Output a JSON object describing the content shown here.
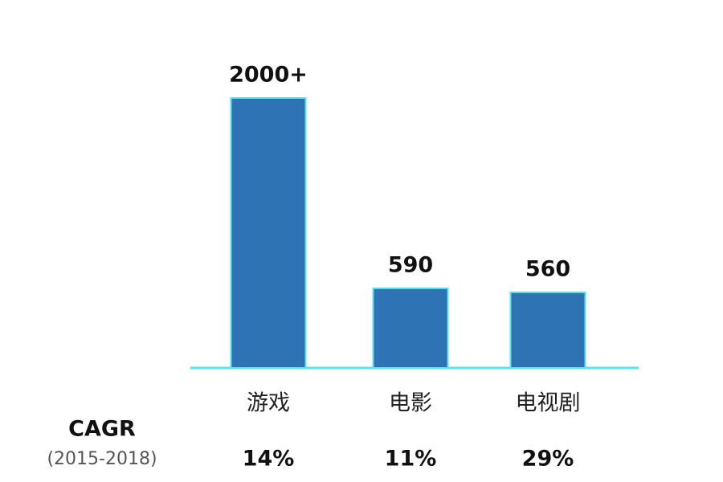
{
  "chart_data": {
    "type": "bar",
    "categories": [
      "游戏",
      "电影",
      "电视剧"
    ],
    "values": [
      2000,
      590,
      560
    ],
    "value_labels": [
      "2000+",
      "590",
      "560"
    ],
    "color": "#2e74b5",
    "cagr": {
      "label": "CAGR",
      "period": "(2015-2018)",
      "values": [
        14,
        11,
        29
      ],
      "value_labels": [
        "14%",
        "11%",
        "29%"
      ]
    }
  }
}
